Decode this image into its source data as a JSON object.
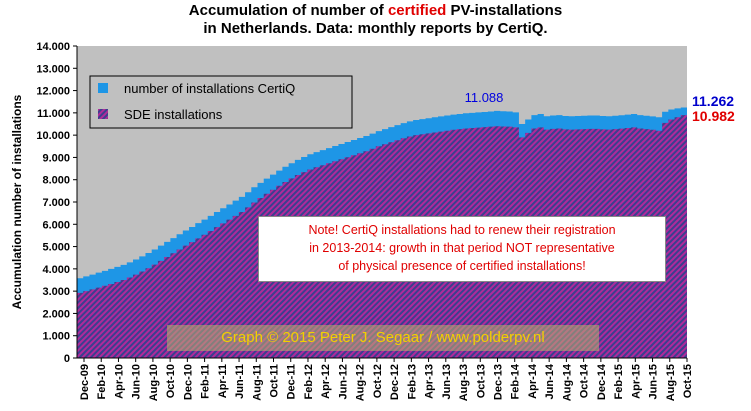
{
  "title": {
    "line1_before": "Accumulation of number of ",
    "line1_highlight": "certified",
    "line1_after": " PV-installations",
    "line2": "in Netherlands. Data: monthly reports by CertiQ."
  },
  "note_lines": [
    "Note! CertiQ installations had to renew their registration",
    "in 2013-2014: growth in that period NOT representative",
    "of physical presence of certified installations!"
  ],
  "credit": "Graph © 2015 Peter J. Segaar / www.polderpv.nl",
  "colors": {
    "certiq": "#1e96e6",
    "sde": "#8a3a8a",
    "plot_bg": "#c0c0c0",
    "last_certiq_label": "#0000cc",
    "last_sde_label": "#e00000",
    "peak_label": "#0000e0",
    "note_text": "#e00000",
    "credit_text": "#f2d000"
  },
  "chart_data": {
    "type": "area",
    "ylabel": "Accumulation number of installations",
    "ylim": [
      0,
      14000
    ],
    "yticks": [
      0,
      1000,
      2000,
      3000,
      4000,
      5000,
      6000,
      7000,
      8000,
      9000,
      10000,
      11000,
      12000,
      13000,
      14000
    ],
    "ytick_labels": [
      "0",
      "1.000",
      "2.000",
      "3.000",
      "4.000",
      "5.000",
      "6.000",
      "7.000",
      "8.000",
      "9.000",
      "10.000",
      "11.000",
      "12.000",
      "13.000",
      "14.000"
    ],
    "xtick_labels": [
      "Dec-09",
      "Feb-10",
      "Apr-10",
      "Jun-10",
      "Aug-10",
      "Oct-10",
      "Dec-10",
      "Feb-11",
      "Apr-11",
      "Jun-11",
      "Aug-11",
      "Oct-11",
      "Dec-11",
      "Feb-12",
      "Apr-12",
      "Jun-12",
      "Aug-12",
      "Oct-12",
      "Dec-12",
      "Feb-13",
      "Apr-13",
      "Jun-13",
      "Aug-13",
      "Oct-13",
      "Dec-13",
      "Feb-14",
      "Apr-14",
      "Jun-14",
      "Aug-14",
      "Oct-14",
      "Dec-14",
      "Feb-15",
      "Apr-15",
      "Jun-15",
      "Aug-15",
      "Oct-15"
    ],
    "legend_position": "top-left",
    "grid": false,
    "series": [
      {
        "name": "number of installations CertiQ",
        "values": [
          3580,
          3660,
          3740,
          3830,
          3910,
          4000,
          4090,
          4180,
          4290,
          4420,
          4560,
          4710,
          4870,
          5040,
          5210,
          5380,
          5550,
          5720,
          5880,
          6050,
          6210,
          6380,
          6550,
          6720,
          6890,
          7060,
          7230,
          7440,
          7660,
          7860,
          8050,
          8230,
          8410,
          8580,
          8740,
          8890,
          9020,
          9140,
          9240,
          9330,
          9420,
          9510,
          9600,
          9690,
          9780,
          9870,
          9960,
          10070,
          10180,
          10270,
          10360,
          10450,
          10540,
          10620,
          10680,
          10720,
          10760,
          10800,
          10840,
          10880,
          10920,
          10950,
          10980,
          11000,
          11020,
          11040,
          11060,
          11088,
          11070,
          11060,
          11020,
          10500,
          10700,
          10900,
          10950,
          10850,
          10880,
          10900,
          10860,
          10850,
          10860,
          10870,
          10880,
          10880,
          10860,
          10850,
          10870,
          10890,
          10920,
          10950,
          10900,
          10870,
          10840,
          10800,
          11050,
          11150,
          11200,
          11240,
          11262
        ]
      },
      {
        "name": "SDE installations",
        "values": [
          2920,
          3000,
          3080,
          3160,
          3240,
          3320,
          3410,
          3500,
          3610,
          3740,
          3880,
          4030,
          4190,
          4360,
          4530,
          4700,
          4870,
          5040,
          5200,
          5370,
          5530,
          5700,
          5870,
          6040,
          6210,
          6380,
          6550,
          6760,
          6980,
          7180,
          7370,
          7550,
          7730,
          7900,
          8060,
          8210,
          8340,
          8460,
          8560,
          8650,
          8740,
          8830,
          8920,
          9010,
          9100,
          9190,
          9280,
          9390,
          9500,
          9590,
          9680,
          9770,
          9860,
          9940,
          10000,
          10040,
          10080,
          10120,
          10160,
          10200,
          10240,
          10270,
          10300,
          10320,
          10340,
          10360,
          10380,
          10400,
          10390,
          10380,
          10350,
          9900,
          10100,
          10300,
          10350,
          10250,
          10280,
          10300,
          10260,
          10250,
          10260,
          10270,
          10280,
          10280,
          10260,
          10250,
          10270,
          10290,
          10320,
          10350,
          10300,
          10270,
          10240,
          10200,
          10550,
          10700,
          10800,
          10900,
          10982
        ]
      }
    ],
    "annotations": [
      {
        "text": "11.088",
        "label_for": "peak"
      },
      {
        "text": "11.262",
        "label_for": "last_certiq"
      },
      {
        "text": "10.982",
        "label_for": "last_sde"
      }
    ]
  }
}
